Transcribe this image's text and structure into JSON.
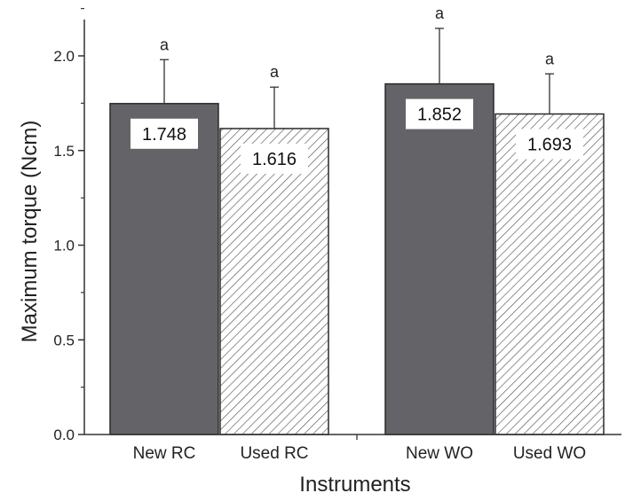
{
  "chart_data": {
    "type": "bar",
    "title": "",
    "xlabel": "Instruments",
    "ylabel": "Maximum torque (Ncm)",
    "ylim": [
      0,
      2.25
    ],
    "yticks": [
      "0.0",
      "0.5",
      "1.0",
      "1.5",
      "2.0"
    ],
    "grid": false,
    "legend": "none",
    "categories": [
      "New RC",
      "Used RC",
      "New WO",
      "Used WO"
    ],
    "values": [
      1.748,
      1.616,
      1.852,
      1.693
    ],
    "value_labels": [
      "1.748",
      "1.616",
      "1.852",
      "1.693"
    ],
    "error_upper": [
      1.98,
      1.835,
      2.145,
      1.905
    ],
    "significance": [
      "a",
      "a",
      "a",
      "a"
    ],
    "fills": [
      "solid",
      "hatched",
      "solid",
      "hatched"
    ],
    "colors": {
      "solid_bar": "#646468",
      "hatch_line": "#555555",
      "axis": "#333333",
      "bar_outline": "#2a2a2a"
    }
  }
}
